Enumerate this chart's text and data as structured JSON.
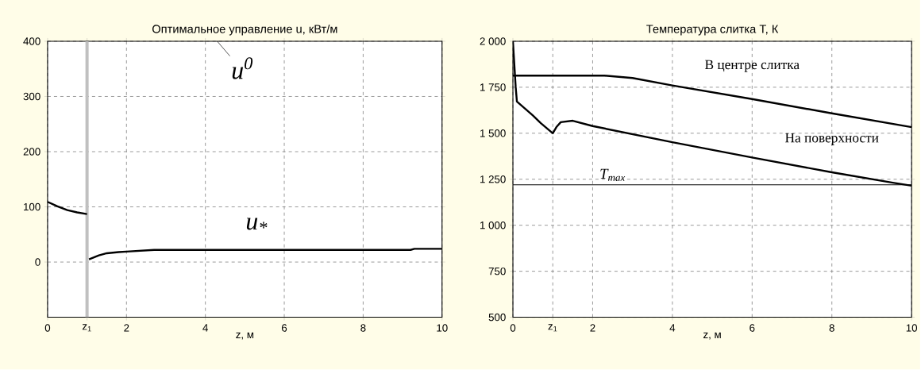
{
  "chart_data": [
    {
      "type": "line",
      "title": "Оптимальное управление u, кВт/м",
      "xlabel": "z, м",
      "x": [
        0,
        0.25,
        0.5,
        0.75,
        1.0,
        1.02,
        1.05,
        1.3,
        1.5,
        1.8,
        2,
        2.7,
        5,
        9.2,
        9.3,
        10
      ],
      "series": [
        {
          "color": "#000000",
          "values": [
            109,
            101,
            94,
            90,
            87,
            null,
            5,
            12,
            16,
            18,
            19,
            22,
            22,
            22,
            24,
            24
          ]
        }
      ],
      "xlim": [
        0,
        10
      ],
      "ylim": [
        -100,
        400
      ],
      "xticks": [
        0,
        {
          "value": 1,
          "label": "z$_{1}$"
        },
        2,
        4,
        6,
        8,
        10
      ],
      "yticks": [
        0,
        100,
        200,
        300,
        400
      ],
      "ref_lines": [
        {
          "axis": "x",
          "value": 1,
          "color": "#c0c0c0"
        }
      ],
      "annotations": [
        "u$^{0}$",
        {
          "text": "u$_{*}$",
          "x": 5.3,
          "y": 22
        }
      ],
      "grid": true,
      "line_style": "solid",
      "marker": "none"
    },
    {
      "type": "line",
      "title": "Температура слитка T, К",
      "xlabel": "z, м",
      "series": [
        {
          "color": "#000000",
          "x": [
            0,
            0.05,
            2.3,
            3,
            4,
            6,
            8,
            10
          ],
          "values": [
            1813,
            1813,
            1813,
            1800,
            1760,
            1686,
            1608,
            1533
          ]
        },
        {
          "color": "#000000",
          "x": [
            0,
            0.07,
            0.1,
            0.5,
            0.7,
            1.0,
            1.1,
            1.2,
            1.5,
            2,
            4,
            6,
            8,
            9.5,
            10
          ],
          "values": [
            2000,
            1750,
            1672,
            1597,
            1555,
            1500,
            1536,
            1560,
            1568,
            1539,
            1451,
            1368,
            1288,
            1232,
            1215
          ]
        }
      ],
      "xlim": [
        0,
        10
      ],
      "ylim": [
        500,
        2000
      ],
      "xticks": [
        0,
        {
          "value": 1,
          "label": "z$_{1}$"
        },
        2,
        4,
        6,
        8,
        10
      ],
      "yticks": [
        {
          "value": 500,
          "label": "500"
        },
        {
          "value": 750,
          "label": "750"
        },
        {
          "value": 1000,
          "label": "1 000"
        },
        {
          "value": 1250,
          "label": "1 250"
        },
        {
          "value": 1500,
          "label": "1 500"
        },
        {
          "value": 1750,
          "label": "1 750"
        },
        {
          "value": 2000,
          "label": "2 000"
        }
      ],
      "ref_lines": [
        {
          "axis": "y",
          "value": 1220,
          "label": "T$_{max}$",
          "color": "#000000"
        }
      ],
      "annotations": [
        {
          "text": "В центре слитка",
          "x": 6,
          "y": 1686
        },
        {
          "text": "На поверхности",
          "x": 8,
          "y": 1288
        }
      ],
      "grid": true,
      "line_style": "solid",
      "marker": "none"
    }
  ]
}
